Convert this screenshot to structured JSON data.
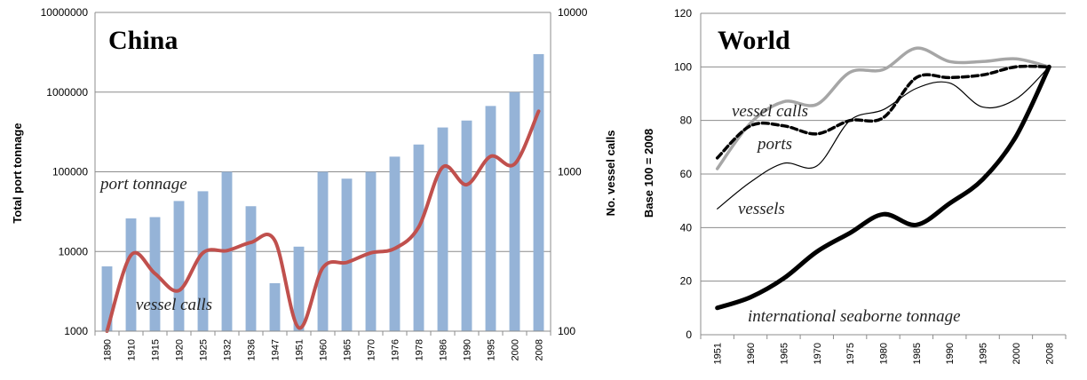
{
  "chart_data": [
    {
      "type": "bar",
      "title": "China",
      "ylabel": "Total port tonnage",
      "y2label": "No. vessel calls",
      "yscale": "log",
      "ylim": [
        1000,
        10000000
      ],
      "y2scale": "log",
      "y2lim": [
        100,
        10000
      ],
      "grid": true,
      "yticks": [
        "1000",
        "10000",
        "100000",
        "1000000",
        "10000000"
      ],
      "y2ticks": [
        "100",
        "1000",
        "10000"
      ],
      "categories": [
        "1890",
        "1910",
        "1915",
        "1920",
        "1925",
        "1932",
        "1936",
        "1947",
        "1951",
        "1960",
        "1965",
        "1970",
        "1976",
        "1978",
        "1986",
        "1990",
        "1995",
        "2000",
        "2008"
      ],
      "series": [
        {
          "name": "port tonnage",
          "type": "bar",
          "axis": "left",
          "color": "#95b3d7",
          "values": [
            6500,
            26000,
            27000,
            43000,
            57000,
            100000,
            37000,
            4000,
            11500,
            100000,
            82000,
            100000,
            155000,
            220000,
            360000,
            440000,
            670000,
            1000000,
            3000000
          ]
        },
        {
          "name": "vessel calls",
          "type": "line",
          "axis": "right",
          "color": "#c0504d",
          "values": [
            100,
            300,
            230,
            180,
            310,
            320,
            360,
            370,
            105,
            250,
            270,
            310,
            330,
            450,
            1070,
            830,
            1250,
            1120,
            2400
          ]
        }
      ],
      "annotations": [
        "port tonnage",
        "vessel calls"
      ]
    },
    {
      "type": "line",
      "title": "World",
      "ylabel": "Base 100 = 2008",
      "ylim": [
        0,
        120
      ],
      "grid": true,
      "yticks": [
        "0",
        "20",
        "40",
        "60",
        "80",
        "100",
        "120"
      ],
      "x": [
        "1951",
        "1960",
        "1965",
        "1970",
        "1975",
        "1980",
        "1985",
        "1990",
        "1995",
        "2000",
        "2008"
      ],
      "series": [
        {
          "name": "vessel calls",
          "color": "#a6a6a6",
          "style": "solid-thick",
          "values": [
            62,
            79,
            87,
            86,
            98,
            99,
            107,
            102,
            102,
            103,
            100
          ]
        },
        {
          "name": "ports",
          "color": "#000000",
          "style": "dashed",
          "values": [
            66,
            78,
            78,
            75,
            80,
            81,
            96,
            96,
            97,
            100,
            100
          ]
        },
        {
          "name": "vessels",
          "color": "#000000",
          "style": "thin",
          "values": [
            47,
            57,
            64,
            63,
            80,
            84,
            92,
            94,
            85,
            88,
            100
          ]
        },
        {
          "name": "international seaborne tonnage",
          "color": "#000000",
          "style": "solid-heavy",
          "values": [
            10,
            14,
            21,
            31,
            38,
            45,
            41,
            49,
            58,
            74,
            100
          ]
        }
      ],
      "annotations": [
        "vessel calls",
        "ports",
        "vessels",
        "international seaborne tonnage"
      ]
    }
  ]
}
